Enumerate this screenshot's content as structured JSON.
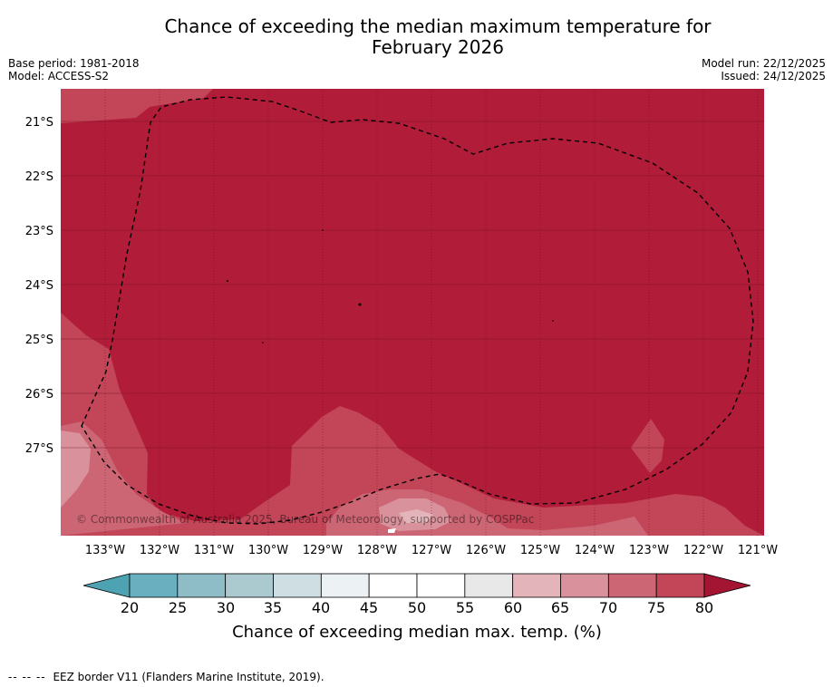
{
  "title": {
    "line1": "Chance of exceeding the median maximum temperature for",
    "line2": "February 2026"
  },
  "meta": {
    "base_period": "Base period: 1981-2018",
    "model": "Model: ACCESS-S2",
    "model_run": "Model run: 22/12/2025",
    "issued": "Issued: 24/12/2025"
  },
  "map": {
    "copyright": "© Commonwealth of Australia 2025, Bureau of Meteorology, supported by COSPPac",
    "lat_labels": [
      "21°S",
      "22°S",
      "23°S",
      "24°S",
      "25°S",
      "26°S",
      "27°S"
    ],
    "lon_labels": [
      "133°W",
      "132°W",
      "131°W",
      "130°W",
      "129°W",
      "128°W",
      "127°W",
      "126°W",
      "125°W",
      "124°W",
      "123°W",
      "122°W",
      "121°W"
    ],
    "colors": {
      "p80": "#b11c39",
      "p75": "#c24558",
      "p70": "#cc6675",
      "p65": "#d9929b",
      "p60": "#e3b5bb",
      "gridline": "#6e0f22"
    }
  },
  "colorbar": {
    "label": "Chance of exceeding median max. temp. (%)",
    "ticks": [
      "20",
      "25",
      "30",
      "35",
      "40",
      "45",
      "50",
      "55",
      "60",
      "65",
      "70",
      "75",
      "80"
    ],
    "bin_colors": [
      "#6aafbf",
      "#8ebdc7",
      "#aacad0",
      "#cfdee2",
      "#ecf2f3",
      "#ffffff",
      "#ffffff",
      "#e8e8e8",
      "#e3b5bb",
      "#d9929b",
      "#cc6675",
      "#c24558"
    ],
    "under_color": "#4ea3b3",
    "over_color": "#a41433"
  },
  "footer": {
    "legend_symbol": "--  --  --",
    "legend_text": "EEZ border V11 (Flanders Marine Institute, 2019)."
  }
}
